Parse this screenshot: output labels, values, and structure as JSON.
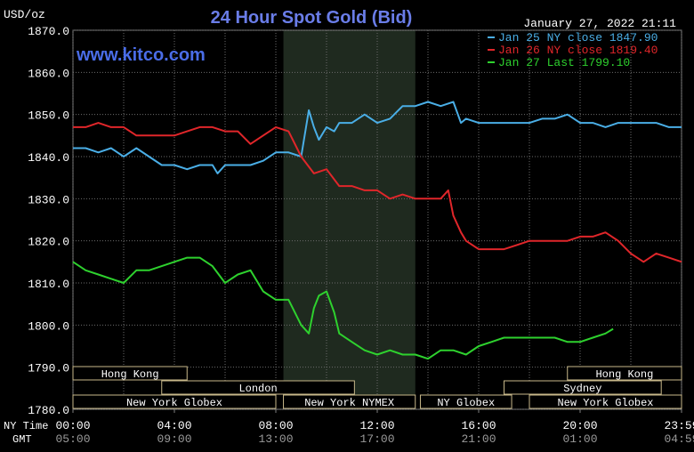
{
  "chart_data": {
    "type": "line",
    "title": "24 Hour Spot Gold (Bid)",
    "ylabel": "USD/oz",
    "watermark": "www.kitco.com",
    "timestamp": "January 27, 2022 21:11",
    "ylim": [
      1780,
      1870
    ],
    "xlim": [
      0,
      24
    ],
    "y_ticks": [
      "1870.0",
      "1860.0",
      "1850.0",
      "1840.0",
      "1830.0",
      "1820.0",
      "1810.0",
      "1800.0",
      "1790.0",
      "1780.0"
    ],
    "x_ticks": [
      {
        "ny": "00:00",
        "gmt": "05:00"
      },
      {
        "ny": "04:00",
        "gmt": "09:00"
      },
      {
        "ny": "08:00",
        "gmt": "13:00"
      },
      {
        "ny": "12:00",
        "gmt": "17:00"
      },
      {
        "ny": "16:00",
        "gmt": "21:00"
      },
      {
        "ny": "20:00",
        "gmt": "01:00"
      },
      {
        "ny": "23:59",
        "gmt": "04:59"
      }
    ],
    "row_labels": {
      "ny": "NY Time",
      "gmt": "GMT"
    },
    "grid": true,
    "legend_position": "top-right",
    "shaded_session": [
      8.3,
      13.5
    ],
    "sessions": [
      {
        "name": "Hong Kong",
        "row": 0,
        "start": 0,
        "end": 4.5
      },
      {
        "name": "Hong Kong",
        "row": 0,
        "start": 19.5,
        "end": 24
      },
      {
        "name": "London",
        "row": 1,
        "start": 3.5,
        "end": 11.1
      },
      {
        "name": "Sydney",
        "row": 1,
        "start": 17.0,
        "end": 23.2
      },
      {
        "name": "New York Globex",
        "row": 2,
        "start": 0,
        "end": 8.0
      },
      {
        "name": "New York NYMEX",
        "row": 2,
        "start": 8.3,
        "end": 13.5
      },
      {
        "name": "NY Globex",
        "row": 2,
        "start": 13.7,
        "end": 17.3
      },
      {
        "name": "New York Globex",
        "row": 2,
        "start": 18.0,
        "end": 24
      }
    ],
    "series": [
      {
        "name": "Jan 25 NY close 1847.90",
        "color": "#4aaee6",
        "x": [
          0,
          0.5,
          1,
          1.5,
          2,
          2.5,
          3,
          3.5,
          4,
          4.5,
          5,
          5.5,
          5.7,
          6,
          6.5,
          7,
          7.5,
          8,
          8.5,
          9,
          9.3,
          9.5,
          9.7,
          10,
          10.3,
          10.5,
          11,
          11.5,
          12,
          12.5,
          13,
          13.5,
          14,
          14.5,
          15,
          15.3,
          15.5,
          16,
          16.5,
          17,
          17.5,
          18,
          18.5,
          19,
          19.5,
          20,
          20.5,
          21,
          21.5,
          22,
          22.5,
          23,
          23.5,
          24
        ],
        "y": [
          1842,
          1842,
          1841,
          1842,
          1840,
          1842,
          1840,
          1838,
          1838,
          1837,
          1838,
          1838,
          1836,
          1838,
          1838,
          1838,
          1839,
          1841,
          1841,
          1840,
          1851,
          1847,
          1844,
          1847,
          1846,
          1848,
          1848,
          1850,
          1848,
          1849,
          1852,
          1852,
          1853,
          1852,
          1853,
          1848,
          1849,
          1848,
          1848,
          1848,
          1848,
          1848,
          1849,
          1849,
          1850,
          1848,
          1848,
          1847,
          1848,
          1848,
          1848,
          1848,
          1847,
          1847
        ]
      },
      {
        "name": "Jan 26 NY close 1819.40",
        "color": "#e0262a",
        "x": [
          0,
          0.5,
          1,
          1.5,
          2,
          2.5,
          3,
          3.5,
          4,
          4.5,
          5,
          5.5,
          6,
          6.5,
          7,
          7.5,
          8,
          8.5,
          9,
          9.5,
          10,
          10.5,
          11,
          11.5,
          12,
          12.5,
          13,
          13.5,
          14,
          14.5,
          14.8,
          15,
          15.3,
          15.5,
          16,
          16.5,
          17,
          17.5,
          18,
          18.5,
          19,
          19.5,
          20,
          20.5,
          21,
          21.5,
          22,
          22.5,
          23,
          23.5,
          24
        ],
        "y": [
          1847,
          1847,
          1848,
          1847,
          1847,
          1845,
          1845,
          1845,
          1845,
          1846,
          1847,
          1847,
          1846,
          1846,
          1843,
          1845,
          1847,
          1846,
          1840,
          1836,
          1837,
          1833,
          1833,
          1832,
          1832,
          1830,
          1831,
          1830,
          1830,
          1830,
          1832,
          1826,
          1822,
          1820,
          1818,
          1818,
          1818,
          1819,
          1820,
          1820,
          1820,
          1820,
          1821,
          1821,
          1822,
          1820,
          1817,
          1815,
          1817,
          1816,
          1815
        ]
      },
      {
        "name": "Jan 27 Last 1799.10",
        "color": "#2ed12e",
        "x": [
          0,
          0.5,
          1,
          1.5,
          2,
          2.5,
          3,
          3.5,
          4,
          4.5,
          5,
          5.5,
          6,
          6.5,
          7,
          7.5,
          8,
          8.5,
          9,
          9.3,
          9.5,
          9.7,
          10,
          10.3,
          10.5,
          11,
          11.5,
          12,
          12.5,
          13,
          13.5,
          14,
          14.5,
          15,
          15.5,
          16,
          16.5,
          17,
          17.5,
          18,
          18.5,
          19,
          19.5,
          20,
          20.5,
          21,
          21.3
        ],
        "y": [
          1815,
          1813,
          1812,
          1811,
          1810,
          1813,
          1813,
          1814,
          1815,
          1816,
          1816,
          1814,
          1810,
          1812,
          1813,
          1808,
          1806,
          1806,
          1800,
          1798,
          1804,
          1807,
          1808,
          1803,
          1798,
          1796,
          1794,
          1793,
          1794,
          1793,
          1793,
          1792,
          1794,
          1794,
          1793,
          1795,
          1796,
          1797,
          1797,
          1797,
          1797,
          1797,
          1796,
          1796,
          1797,
          1798,
          1799.1
        ]
      }
    ]
  }
}
